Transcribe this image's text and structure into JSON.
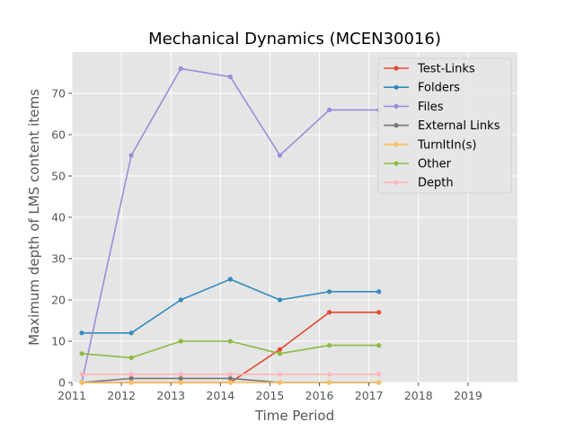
{
  "chart_data": {
    "type": "line",
    "title": "Mechanical Dynamics (MCEN30016)",
    "xlabel": "Time Period",
    "ylabel": "Maximum depth of LMS content items",
    "xlim": [
      2011,
      2020
    ],
    "ylim": [
      0,
      80
    ],
    "xticks": [
      2011,
      2012,
      2013,
      2014,
      2015,
      2016,
      2017,
      2018,
      2019
    ],
    "yticks": [
      0,
      10,
      20,
      30,
      40,
      50,
      60,
      70
    ],
    "grid": true,
    "legend": "top-right",
    "x": [
      2011.2,
      2012.2,
      2013.2,
      2014.2,
      2015.2,
      2016.2,
      2017.2
    ],
    "series": [
      {
        "name": "Test-Links",
        "color": "#E24A33",
        "values": [
          0,
          0,
          0,
          0,
          8,
          17,
          17
        ]
      },
      {
        "name": "Folders",
        "color": "#348ABD",
        "values": [
          12,
          12,
          20,
          25,
          20,
          22,
          22
        ]
      },
      {
        "name": "Files",
        "color": "#988ED5",
        "values": [
          0,
          55,
          76,
          74,
          55,
          66,
          66
        ]
      },
      {
        "name": "External Links",
        "color": "#777777",
        "values": [
          0,
          1,
          1,
          1,
          0,
          0,
          0
        ]
      },
      {
        "name": "TurnItIn(s)",
        "color": "#FBC15E",
        "values": [
          0,
          0,
          0,
          0,
          0,
          0,
          0
        ]
      },
      {
        "name": "Other",
        "color": "#8EBA42",
        "values": [
          7,
          6,
          10,
          10,
          7,
          9,
          9
        ]
      },
      {
        "name": "Depth",
        "color": "#FFB5B8",
        "values": [
          2,
          2,
          2,
          2,
          2,
          2,
          2
        ]
      }
    ]
  }
}
